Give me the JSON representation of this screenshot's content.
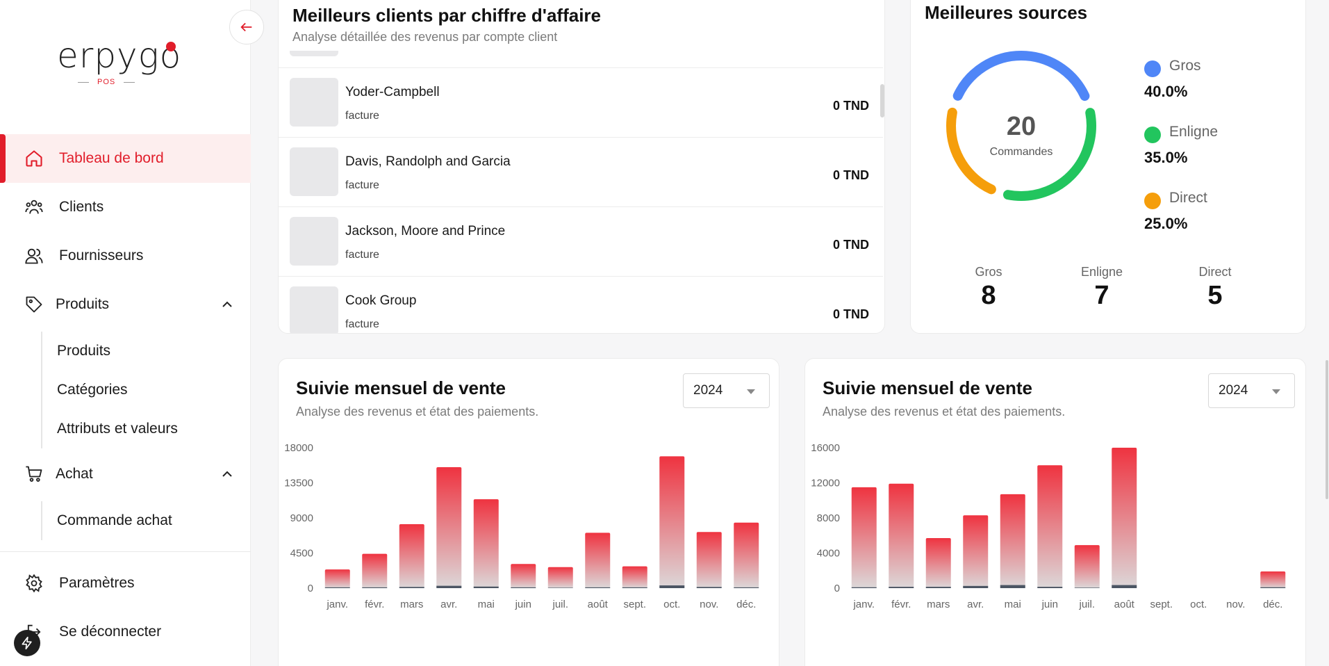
{
  "brand": {
    "name": "erpygo",
    "sub": "POS",
    "accent": "#e11d2a"
  },
  "sidebar": {
    "items": [
      {
        "label": "Tableau de bord",
        "icon": "home-icon",
        "active": true
      },
      {
        "label": "Clients",
        "icon": "users-group-icon"
      },
      {
        "label": "Fournisseurs",
        "icon": "users-icon"
      },
      {
        "label": "Produits",
        "icon": "tag-icon",
        "expanded": true
      },
      {
        "label": "Achat",
        "icon": "cart-icon",
        "expanded": true
      },
      {
        "label": "Paramètres",
        "icon": "gear-icon"
      },
      {
        "label": "Se déconnecter",
        "icon": "logout-icon"
      }
    ],
    "produits_sub": [
      "Produits",
      "Catégories",
      "Attributs et valeurs"
    ],
    "achat_sub": [
      "Commande achat"
    ]
  },
  "clients_card": {
    "title": "Meilleurs clients par chiffre d'affaire",
    "subtitle": "Analyse détaillée des revenus par compte client",
    "rows": [
      {
        "name": "Yoder-Campbell",
        "type": "facture",
        "amount": "0 TND"
      },
      {
        "name": "Davis, Randolph and Garcia",
        "type": "facture",
        "amount": "0 TND"
      },
      {
        "name": "Jackson, Moore and Prince",
        "type": "facture",
        "amount": "0 TND"
      },
      {
        "name": "Cook Group",
        "type": "facture",
        "amount": "0 TND"
      }
    ]
  },
  "sources_card": {
    "title": "Meilleures sources",
    "center_value": "20",
    "center_label": "Commandes",
    "legend": [
      {
        "name": "Gros",
        "pct": "40.0%",
        "color": "#4f86f7",
        "count": "8"
      },
      {
        "name": "Enligne",
        "pct": "35.0%",
        "color": "#22c55e",
        "count": "7"
      },
      {
        "name": "Direct",
        "pct": "25.0%",
        "color": "#f59e0b",
        "count": "5"
      }
    ]
  },
  "chart_data": [
    {
      "type": "bar",
      "title": "Suivie mensuel de vente",
      "subtitle": "Analyse des revenus et état des paiements.",
      "year": "2024",
      "categories": [
        "janv.",
        "févr.",
        "mars",
        "avr.",
        "mai",
        "juin",
        "juil.",
        "août",
        "sept.",
        "oct.",
        "nov.",
        "déc."
      ],
      "series": [
        {
          "values": [
            2400,
            4400,
            8200,
            15500,
            11400,
            3100,
            2700,
            7100,
            2800,
            16900,
            7200,
            8400
          ]
        },
        {
          "values": [
            100,
            100,
            150,
            300,
            200,
            100,
            50,
            100,
            100,
            350,
            150,
            100
          ]
        }
      ],
      "yticks": [
        "0",
        "4500",
        "9000",
        "13500",
        "18000"
      ],
      "ylim": [
        0,
        18000
      ]
    },
    {
      "type": "bar",
      "title": "Suivie mensuel de vente",
      "subtitle": "Analyse des revenus et état des paiements.",
      "year": "2024",
      "categories": [
        "janv.",
        "févr.",
        "mars",
        "avr.",
        "mai",
        "juin",
        "juil.",
        "août",
        "sept.",
        "oct.",
        "nov.",
        "déc."
      ],
      "series": [
        {
          "values": [
            11500,
            11900,
            5700,
            8300,
            10700,
            14000,
            4900,
            16000,
            0,
            0,
            0,
            1900
          ]
        },
        {
          "values": [
            100,
            150,
            150,
            250,
            350,
            150,
            50,
            350,
            0,
            0,
            0,
            100
          ]
        }
      ],
      "yticks": [
        "0",
        "4000",
        "8000",
        "12000",
        "16000"
      ],
      "ylim": [
        0,
        16000
      ]
    }
  ]
}
